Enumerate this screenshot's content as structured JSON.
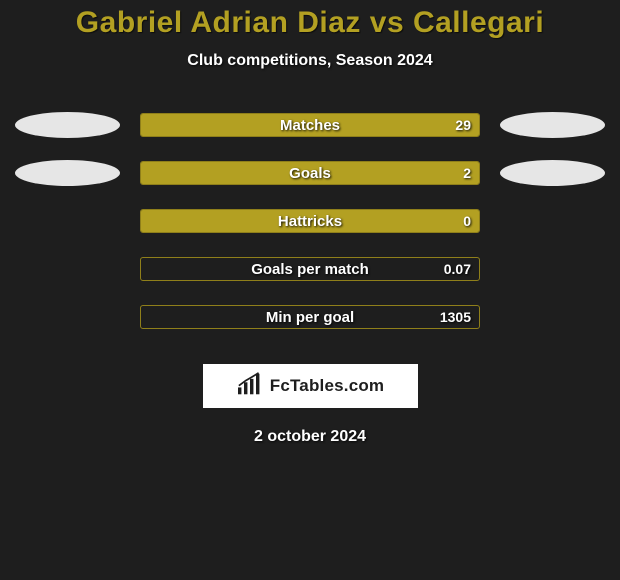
{
  "title": "Gabriel Adrian Diaz vs Callegari",
  "subtitle": "Club competitions, Season 2024",
  "date": "2 october 2024",
  "brand": {
    "text": "FcTables.com"
  },
  "colors": {
    "accent": "#b3a022",
    "bar_border": "#8f7f1a",
    "ellipse": "#e6e6e6",
    "background": "#1e1e1e",
    "text": "#ffffff",
    "brand_bg": "#ffffff",
    "brand_text": "#1e1e1e"
  },
  "stats": [
    {
      "label": "Matches",
      "value": "29",
      "fill_pct": 100,
      "show_ellipses": true
    },
    {
      "label": "Goals",
      "value": "2",
      "fill_pct": 100,
      "show_ellipses": true
    },
    {
      "label": "Hattricks",
      "value": "0",
      "fill_pct": 100,
      "show_ellipses": false
    },
    {
      "label": "Goals per match",
      "value": "0.07",
      "fill_pct": 0,
      "show_ellipses": false
    },
    {
      "label": "Min per goal",
      "value": "1305",
      "fill_pct": 0,
      "show_ellipses": false
    }
  ]
}
